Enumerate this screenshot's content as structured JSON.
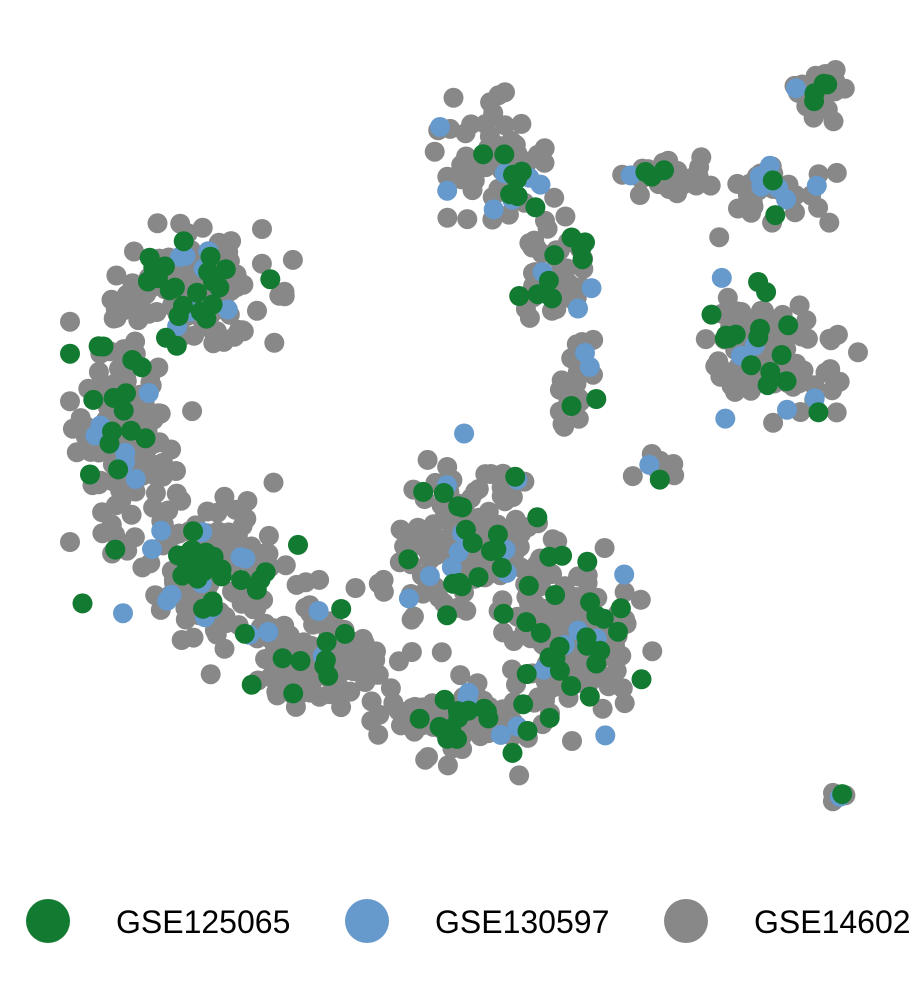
{
  "chart_data": {
    "type": "scatter",
    "title": "",
    "xlabel": "",
    "ylabel": "",
    "axes_visible": false,
    "grid": false,
    "legend_position": "bottom",
    "series": [
      {
        "name": "GSE125065",
        "color": "#137a32"
      },
      {
        "name": "GSE130597",
        "color": "#6699cc"
      },
      {
        "name": "GSE14602",
        "color": "#888888"
      }
    ],
    "clusters": [
      {
        "center": [
          190,
          290
        ],
        "spread": [
          65,
          50
        ],
        "count": 160
      },
      {
        "center": [
          120,
          430
        ],
        "spread": [
          40,
          90
        ],
        "count": 150
      },
      {
        "center": [
          200,
          570
        ],
        "spread": [
          75,
          60
        ],
        "count": 170
      },
      {
        "center": [
          320,
          660
        ],
        "spread": [
          80,
          50
        ],
        "count": 120
      },
      {
        "center": [
          470,
          540
        ],
        "spread": [
          70,
          60
        ],
        "count": 150
      },
      {
        "center": [
          570,
          640
        ],
        "spread": [
          60,
          70
        ],
        "count": 170
      },
      {
        "center": [
          470,
          720
        ],
        "spread": [
          70,
          30
        ],
        "count": 90
      },
      {
        "center": [
          500,
          170
        ],
        "spread": [
          45,
          55
        ],
        "count": 80
      },
      {
        "center": [
          555,
          275
        ],
        "spread": [
          35,
          40
        ],
        "count": 50
      },
      {
        "center": [
          580,
          380
        ],
        "spread": [
          20,
          45
        ],
        "count": 25
      },
      {
        "center": [
          660,
          175
        ],
        "spread": [
          45,
          15
        ],
        "count": 25
      },
      {
        "center": [
          760,
          190
        ],
        "spread": [
          50,
          30
        ],
        "count": 40
      },
      {
        "center": [
          770,
          350
        ],
        "spread": [
          55,
          65
        ],
        "count": 110
      },
      {
        "center": [
          820,
          90
        ],
        "spread": [
          25,
          20
        ],
        "count": 40
      },
      {
        "center": [
          665,
          470
        ],
        "spread": [
          25,
          15
        ],
        "count": 10
      },
      {
        "center": [
          838,
          795
        ],
        "spread": [
          8,
          8
        ],
        "count": 5
      }
    ],
    "mix": {
      "GSE125065": 0.12,
      "GSE130597": 0.05,
      "GSE14602": 0.83
    }
  }
}
